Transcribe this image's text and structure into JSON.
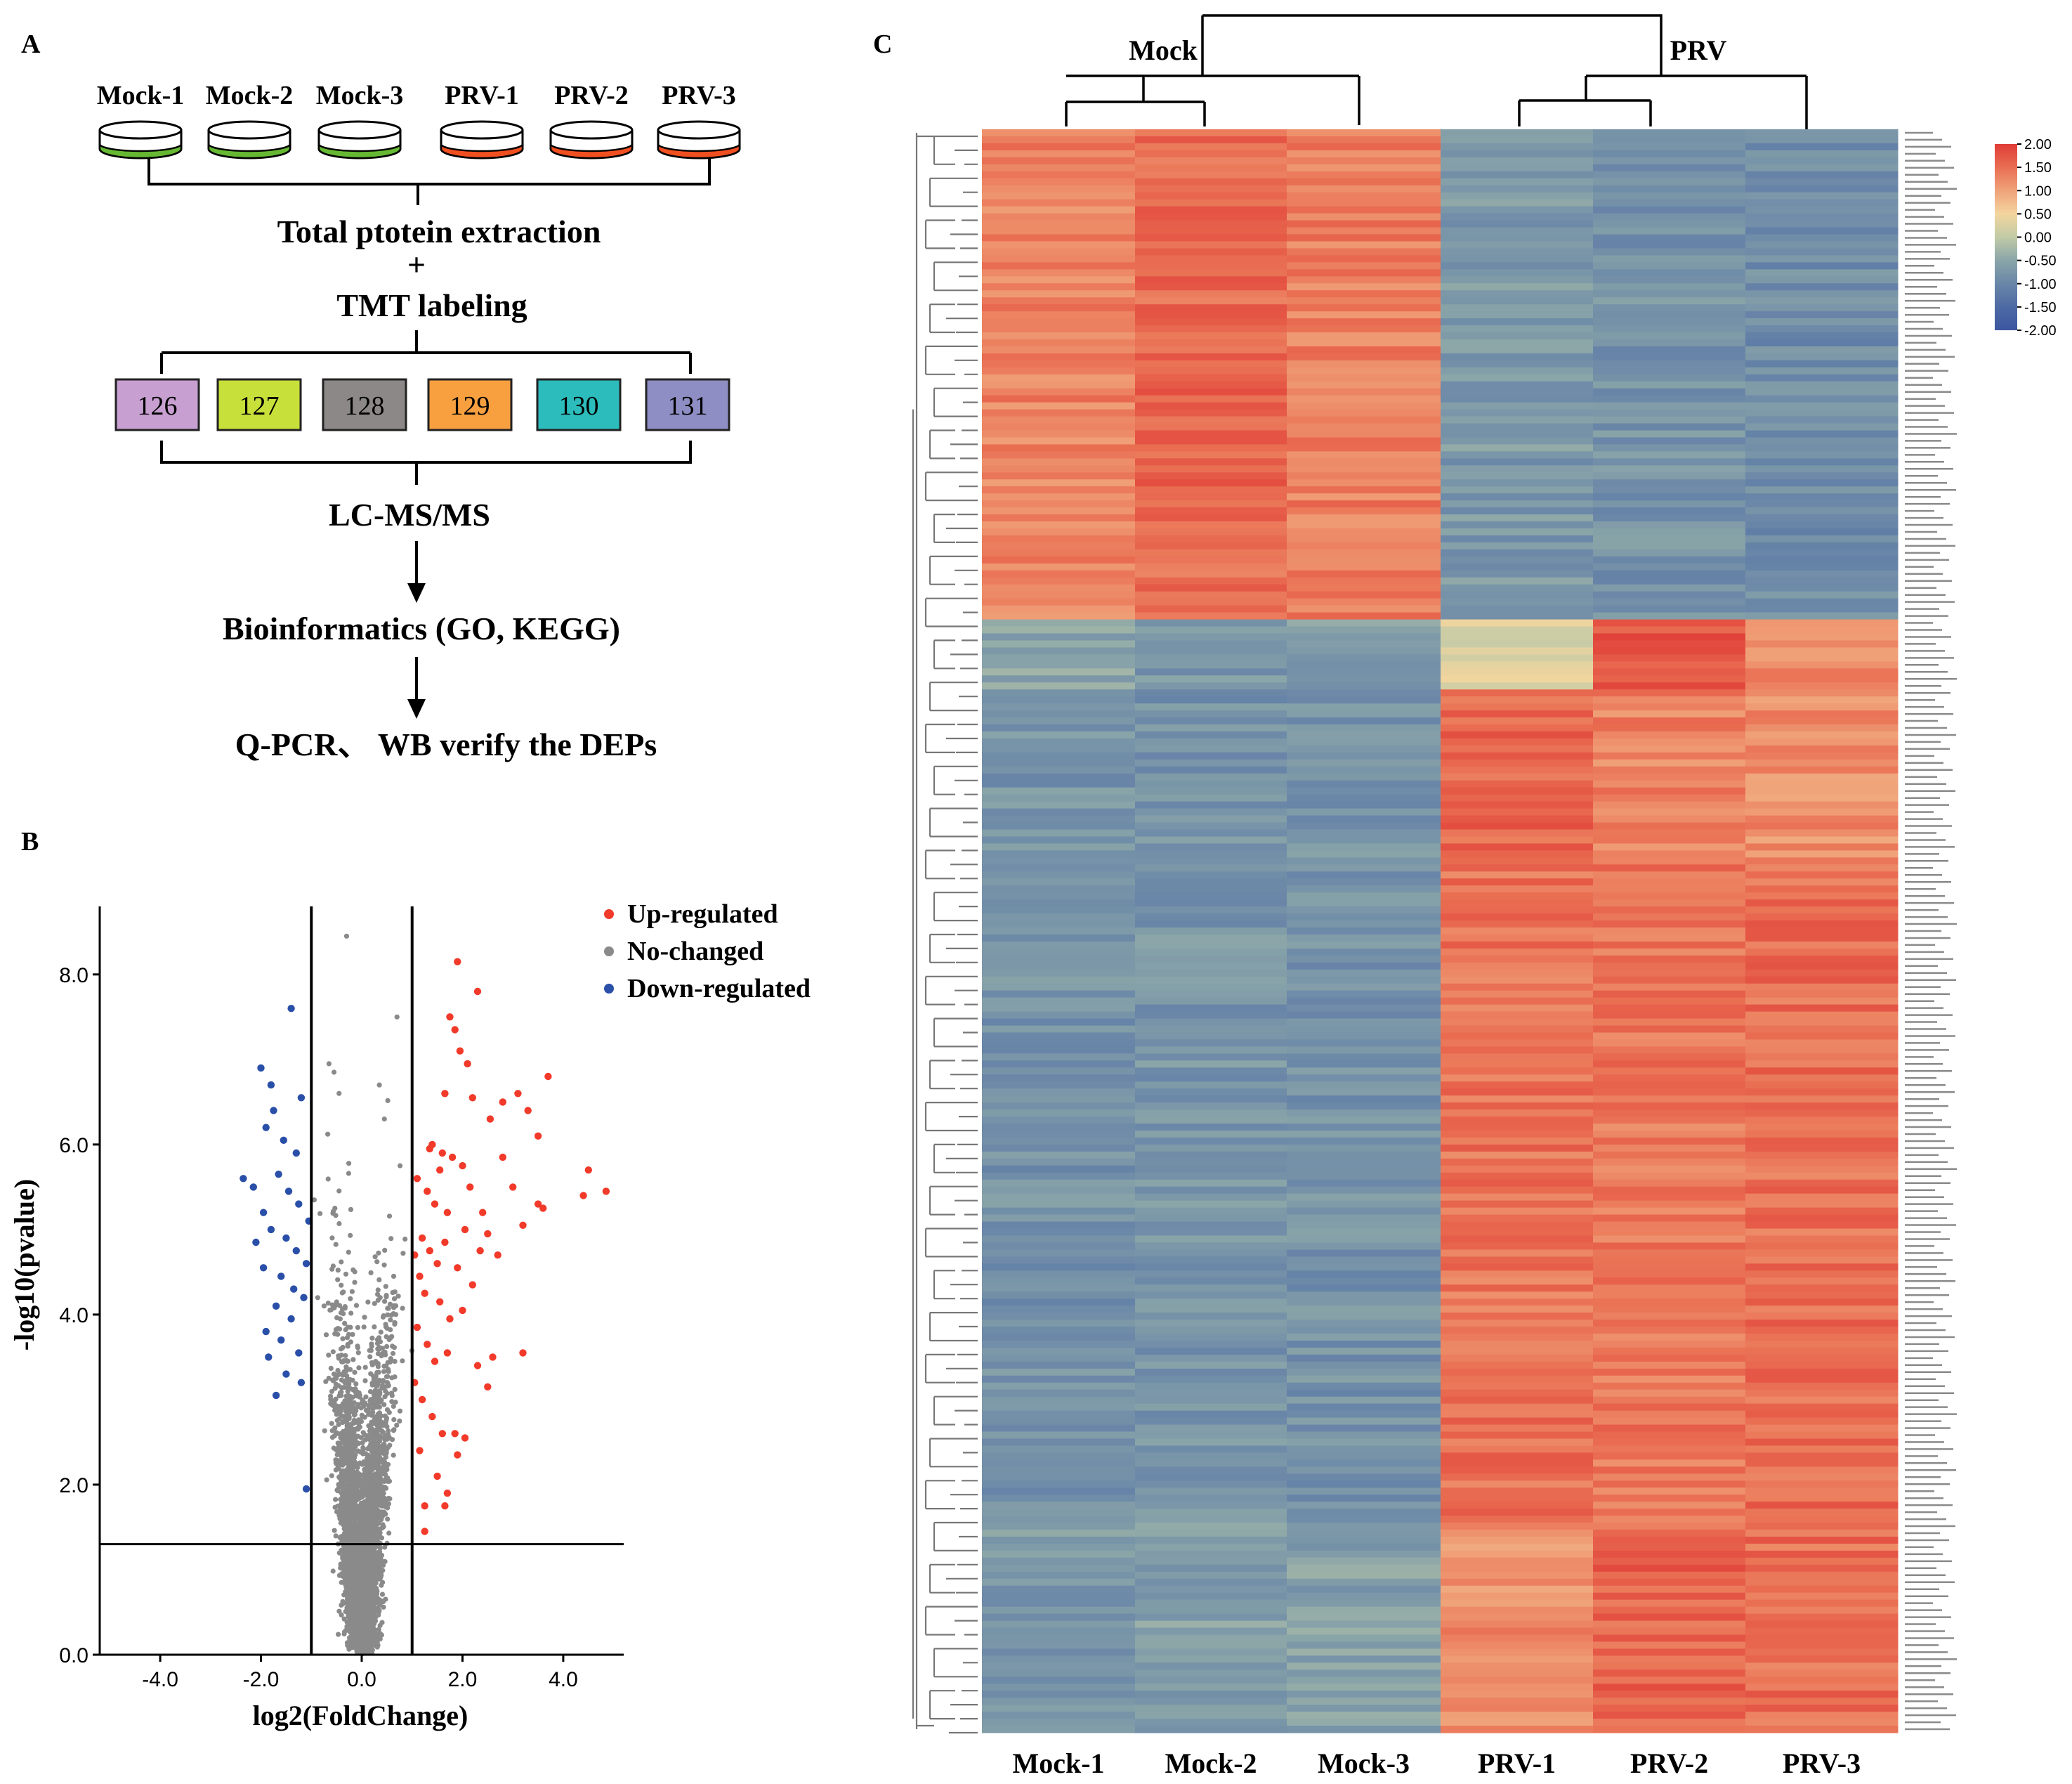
{
  "panel_a": {
    "label": "A",
    "samples": [
      "Mock-1",
      "Mock-2",
      "Mock-3",
      "PRV-1",
      "PRV-2",
      "PRV-3"
    ],
    "steps": {
      "extraction": "Total ptotein extraction",
      "plus": "+",
      "labeling": "TMT labeling",
      "lcms": "LC-MS/MS",
      "bioinformatics": "Bioinformatics (GO, KEGG)",
      "verify": "Q-PCR、 WB verify the DEPs"
    },
    "tmt_tags": [
      {
        "label": "126",
        "color": "#c79fd1"
      },
      {
        "label": "127",
        "color": "#c8e03a"
      },
      {
        "label": "128",
        "color": "#8c8888"
      },
      {
        "label": "129",
        "color": "#f8a040"
      },
      {
        "label": "130",
        "color": "#2cbcbc"
      },
      {
        "label": "131",
        "color": "#8e8ec4"
      }
    ],
    "colors": {
      "mock": "#66b832",
      "prv": "#f04f20"
    }
  },
  "panel_b": {
    "label": "B",
    "chart_data": {
      "type": "scatter",
      "title": "",
      "xlabel": "log2(FoldChange)",
      "ylabel": "-log10(pvalue)",
      "xlim": [
        -5.2,
        5.2
      ],
      "ylim": [
        0,
        8.8
      ],
      "xticks": [
        -4.0,
        -2.0,
        0.0,
        2.0,
        4.0
      ],
      "xtick_labels": [
        "-4.0",
        "-2.0",
        "0.0",
        "2.0",
        "4.0"
      ],
      "yticks": [
        0,
        2,
        4,
        6,
        8
      ],
      "ytick_labels": [
        "0.0",
        "2.0",
        "4.0",
        "6.0",
        "8.0"
      ],
      "thresholds": {
        "fold_change": [
          -1.0,
          1.0
        ],
        "pvalue": 1.3
      },
      "legend": [
        {
          "name": "Up-regulated",
          "color": "#f23a2a"
        },
        {
          "name": "No-changed",
          "color": "#8a8a8a"
        },
        {
          "name": "Down-regulated",
          "color": "#2a4fa8"
        }
      ],
      "legend_position": "top-right",
      "series": [
        {
          "name": "Up-regulated",
          "color": "#f23a2a",
          "points": [
            [
              1.9,
              8.15
            ],
            [
              2.3,
              7.8
            ],
            [
              1.75,
              7.5
            ],
            [
              1.85,
              7.35
            ],
            [
              1.95,
              7.1
            ],
            [
              2.1,
              6.95
            ],
            [
              1.65,
              6.6
            ],
            [
              2.2,
              6.55
            ],
            [
              3.7,
              6.8
            ],
            [
              3.1,
              6.6
            ],
            [
              2.8,
              6.5
            ],
            [
              3.3,
              6.4
            ],
            [
              2.55,
              6.3
            ],
            [
              3.5,
              6.1
            ],
            [
              4.5,
              5.7
            ],
            [
              4.4,
              5.4
            ],
            [
              4.85,
              5.45
            ],
            [
              3.5,
              5.3
            ],
            [
              3.6,
              5.25
            ],
            [
              3.0,
              5.5
            ],
            [
              2.8,
              5.85
            ],
            [
              3.2,
              5.05
            ],
            [
              2.4,
              5.2
            ],
            [
              2.5,
              4.95
            ],
            [
              2.7,
              4.7
            ],
            [
              1.4,
              6.0
            ],
            [
              1.6,
              5.9
            ],
            [
              1.55,
              5.7
            ],
            [
              1.8,
              5.85
            ],
            [
              2.0,
              5.75
            ],
            [
              1.3,
              5.45
            ],
            [
              1.45,
              5.3
            ],
            [
              1.7,
              5.2
            ],
            [
              2.05,
              5.0
            ],
            [
              1.2,
              4.9
            ],
            [
              1.35,
              4.75
            ],
            [
              1.5,
              4.6
            ],
            [
              1.65,
              4.85
            ],
            [
              1.9,
              4.55
            ],
            [
              2.2,
              4.35
            ],
            [
              1.15,
              4.45
            ],
            [
              1.25,
              4.25
            ],
            [
              1.55,
              4.15
            ],
            [
              1.75,
              3.95
            ],
            [
              2.0,
              4.05
            ],
            [
              1.1,
              3.85
            ],
            [
              1.3,
              3.65
            ],
            [
              1.45,
              3.45
            ],
            [
              1.7,
              3.55
            ],
            [
              2.3,
              3.4
            ],
            [
              2.6,
              3.5
            ],
            [
              3.2,
              3.55
            ],
            [
              2.5,
              3.15
            ],
            [
              1.2,
              3.0
            ],
            [
              1.4,
              2.8
            ],
            [
              1.6,
              2.6
            ],
            [
              1.85,
              2.6
            ],
            [
              1.9,
              2.35
            ],
            [
              1.5,
              2.1
            ],
            [
              1.7,
              1.9
            ],
            [
              1.25,
              1.45
            ],
            [
              1.65,
              1.75
            ],
            [
              2.05,
              2.55
            ],
            [
              1.05,
              4.7
            ],
            [
              1.1,
              5.6
            ],
            [
              1.35,
              5.95
            ],
            [
              2.15,
              5.5
            ],
            [
              2.35,
              4.75
            ],
            [
              1.05,
              3.2
            ],
            [
              1.15,
              2.4
            ],
            [
              1.25,
              1.75
            ]
          ]
        },
        {
          "name": "Down-regulated",
          "color": "#2a4fa8",
          "points": [
            [
              -2.0,
              6.9
            ],
            [
              -1.8,
              6.7
            ],
            [
              -1.4,
              7.6
            ],
            [
              -1.75,
              6.4
            ],
            [
              -1.9,
              6.2
            ],
            [
              -1.55,
              6.05
            ],
            [
              -1.3,
              5.9
            ],
            [
              -2.35,
              5.6
            ],
            [
              -2.15,
              5.5
            ],
            [
              -1.65,
              5.65
            ],
            [
              -1.45,
              5.45
            ],
            [
              -1.25,
              5.3
            ],
            [
              -1.95,
              5.2
            ],
            [
              -1.8,
              5.0
            ],
            [
              -1.5,
              4.9
            ],
            [
              -1.3,
              4.75
            ],
            [
              -2.1,
              4.85
            ],
            [
              -1.95,
              4.55
            ],
            [
              -1.6,
              4.45
            ],
            [
              -1.35,
              4.3
            ],
            [
              -1.15,
              4.2
            ],
            [
              -1.7,
              4.1
            ],
            [
              -1.4,
              3.95
            ],
            [
              -1.9,
              3.8
            ],
            [
              -1.6,
              3.7
            ],
            [
              -1.25,
              3.55
            ],
            [
              -1.85,
              3.5
            ],
            [
              -1.5,
              3.3
            ],
            [
              -1.2,
              3.2
            ],
            [
              -1.7,
              3.05
            ],
            [
              -1.1,
              1.95
            ],
            [
              -1.2,
              6.55
            ],
            [
              -1.05,
              5.1
            ],
            [
              -1.1,
              4.6
            ]
          ]
        }
      ],
      "no_changed_count": 3600
    }
  },
  "panel_c": {
    "label": "C",
    "group_labels": {
      "mock": "Mock",
      "prv": "PRV"
    },
    "colorbar": {
      "ticks": [
        "2.00",
        "1.50",
        "1.00",
        "0.50",
        "0.00",
        "-0.50",
        "-1.00",
        "-1.50",
        "-2.00"
      ],
      "colors": [
        "#e03c37",
        "#e96e52",
        "#f0a279",
        "#f3d59e",
        "#c1cba7",
        "#8aa5a8",
        "#6986a8",
        "#4e6aa4",
        "#3b56a0"
      ]
    },
    "chart_data": {
      "type": "heatmap",
      "columns": [
        "Mock-1",
        "Mock-2",
        "Mock-3",
        "PRV-1",
        "PRV-2",
        "PRV-3"
      ],
      "value_range": [
        -2.0,
        2.0
      ],
      "clusters": [
        {
          "rows": 70,
          "values": [
            1.3,
            1.55,
            1.35,
            -0.7,
            -0.8,
            -0.9
          ]
        },
        {
          "rows": 10,
          "values": [
            -0.55,
            -0.75,
            -0.6,
            0.3,
            1.7,
            1.2
          ]
        },
        {
          "rows": 25,
          "values": [
            -0.75,
            -0.8,
            -0.75,
            1.6,
            1.3,
            1.2
          ]
        },
        {
          "rows": 94,
          "values": [
            -0.8,
            -0.75,
            -0.8,
            1.45,
            1.4,
            1.5
          ]
        },
        {
          "rows": 30,
          "values": [
            -0.7,
            -0.6,
            -0.6,
            1.2,
            1.6,
            1.5
          ]
        }
      ],
      "row_labels_visible": false
    }
  }
}
